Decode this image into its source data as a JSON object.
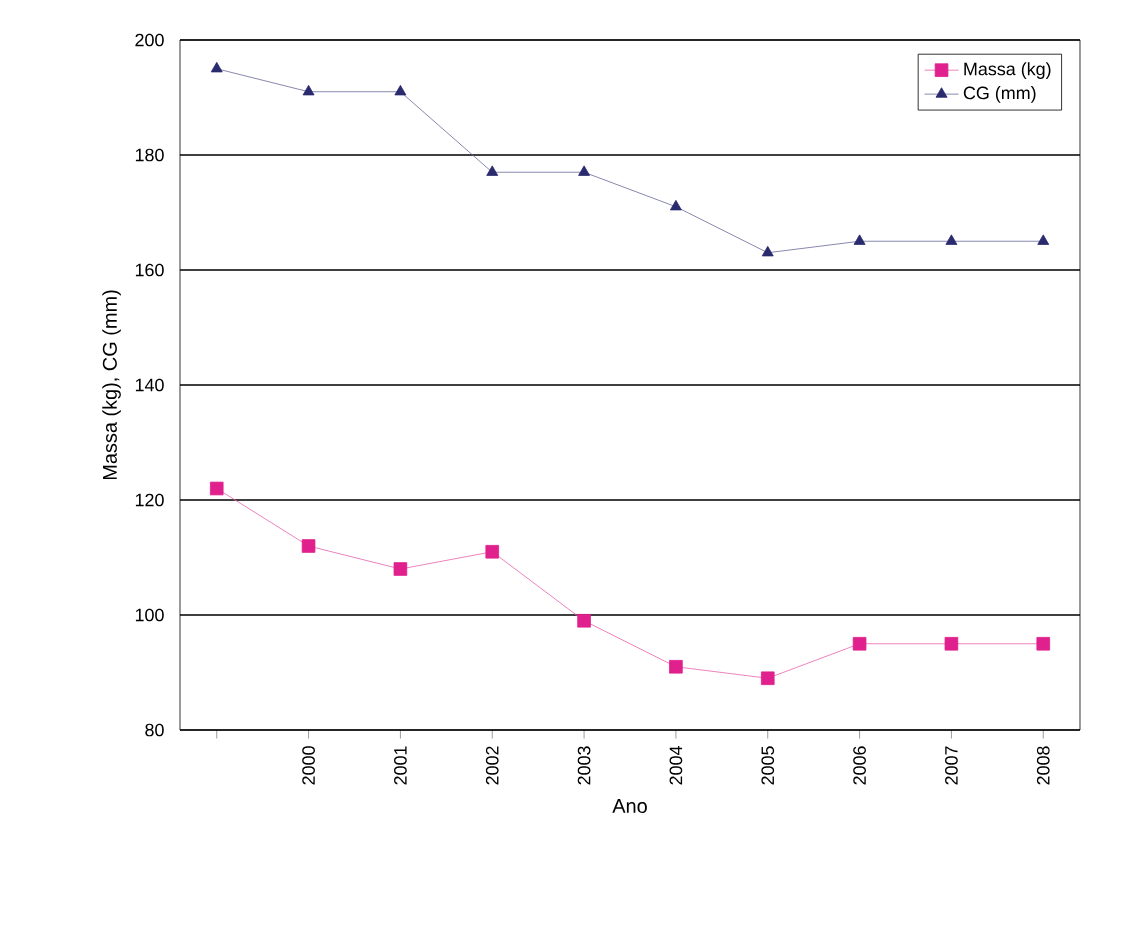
{
  "chart_data": {
    "type": "line",
    "xlabel": "Ano",
    "ylabel": "Massa (kg), CG (mm)",
    "categories": [
      null,
      "2000",
      "2001",
      "2002",
      "2003",
      "2004",
      "2005",
      "2006",
      "2007",
      "2008"
    ],
    "series": [
      {
        "name": "Massa (kg)",
        "color": "#e0208c",
        "marker": "square",
        "values": [
          122,
          112,
          108,
          111,
          99,
          91,
          89,
          95,
          95,
          95
        ]
      },
      {
        "name": "CG (mm)",
        "color": "#2a2a6e",
        "marker": "triangle",
        "values": [
          195,
          191,
          191,
          177,
          177,
          171,
          163,
          165,
          165,
          165
        ]
      }
    ],
    "ylim": [
      80,
      200
    ],
    "yticks": [
      80,
      100,
      120,
      140,
      160,
      180,
      200
    ],
    "grid": "y",
    "legend": "top right",
    "line_style": "solid"
  }
}
